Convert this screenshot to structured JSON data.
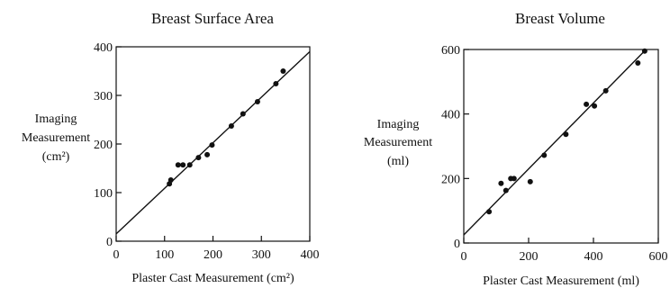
{
  "chart_data": [
    {
      "type": "scatter",
      "title": "Breast Surface Area",
      "xlabel": "Plaster Cast Measurement (cm²)",
      "ylabel_lines": [
        "Imaging",
        "Measurement",
        "(cm²)"
      ],
      "xlim": [
        0,
        400
      ],
      "ylim": [
        0,
        400
      ],
      "xticks": [
        "0",
        "100",
        "200",
        "300",
        "400"
      ],
      "yticks": [
        "0",
        "100",
        "200",
        "300",
        "400"
      ],
      "grid": false,
      "points": [
        {
          "x": 110,
          "y": 118
        },
        {
          "x": 113,
          "y": 126
        },
        {
          "x": 128,
          "y": 157
        },
        {
          "x": 138,
          "y": 157
        },
        {
          "x": 152,
          "y": 157
        },
        {
          "x": 170,
          "y": 172
        },
        {
          "x": 188,
          "y": 178
        },
        {
          "x": 198,
          "y": 198
        },
        {
          "x": 238,
          "y": 237
        },
        {
          "x": 262,
          "y": 262
        },
        {
          "x": 292,
          "y": 287
        },
        {
          "x": 330,
          "y": 324
        },
        {
          "x": 345,
          "y": 350
        }
      ],
      "fit_line": {
        "x": [
          0,
          400
        ],
        "y": [
          15,
          390
        ]
      }
    },
    {
      "type": "scatter",
      "title": "Breast Volume",
      "xlabel": "Plaster Cast Measurement (ml)",
      "ylabel_lines": [
        "Imaging",
        "Measurement",
        "(ml)"
      ],
      "xlim": [
        0,
        600
      ],
      "ylim": [
        0,
        600
      ],
      "xticks": [
        "0",
        "200",
        "400",
        "600"
      ],
      "yticks": [
        "0",
        "200",
        "400",
        "600"
      ],
      "grid": false,
      "points": [
        {
          "x": 78,
          "y": 97
        },
        {
          "x": 115,
          "y": 185
        },
        {
          "x": 130,
          "y": 163
        },
        {
          "x": 145,
          "y": 200
        },
        {
          "x": 155,
          "y": 200
        },
        {
          "x": 205,
          "y": 190
        },
        {
          "x": 248,
          "y": 272
        },
        {
          "x": 315,
          "y": 337
        },
        {
          "x": 378,
          "y": 430
        },
        {
          "x": 403,
          "y": 425
        },
        {
          "x": 438,
          "y": 472
        },
        {
          "x": 537,
          "y": 558
        },
        {
          "x": 558,
          "y": 595
        }
      ],
      "fit_line": {
        "x": [
          0,
          560
        ],
        "y": [
          25,
          598
        ]
      }
    }
  ]
}
